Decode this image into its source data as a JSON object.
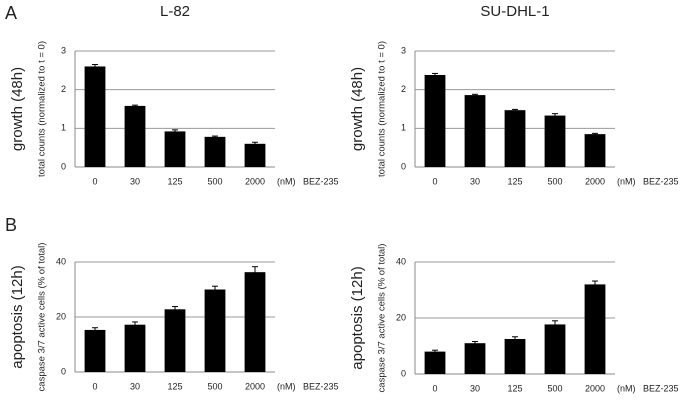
{
  "panel_labels": [
    "A",
    "B"
  ],
  "chart_data": [
    {
      "type": "bar",
      "title": "L-82",
      "y_label_main": "growth (48h)",
      "y_label": "total counts (normalized to t = 0)",
      "categories": [
        "0",
        "30",
        "125",
        "500",
        "2000"
      ],
      "unit_label": "(nM)",
      "x_label": "BEZ-235",
      "values": [
        2.6,
        1.58,
        0.92,
        0.78,
        0.6
      ],
      "errors": [
        0.05,
        0.02,
        0.04,
        0.02,
        0.04
      ],
      "color": "#000000",
      "ylim": [
        0,
        3
      ],
      "yticks": [
        0,
        1,
        2,
        3
      ],
      "grid": true
    },
    {
      "type": "bar",
      "title": "SU-DHL-1",
      "y_label_main": "growth (48h)",
      "y_label": "total counts (normalized to t = 0)",
      "categories": [
        "0",
        "30",
        "125",
        "500",
        "2000"
      ],
      "unit_label": "(nM)",
      "x_label": "BEZ-235",
      "values": [
        2.38,
        1.86,
        1.47,
        1.33,
        0.85
      ],
      "errors": [
        0.04,
        0.02,
        0.02,
        0.05,
        0.02
      ],
      "color": "#000000",
      "ylim": [
        0,
        3
      ],
      "yticks": [
        0,
        1,
        2,
        3
      ],
      "grid": true
    },
    {
      "type": "bar",
      "y_label_main": "apoptosis (12h)",
      "y_label": "caspase 3/7 active cells  (% of total)",
      "categories": [
        "0",
        "30",
        "125",
        "500",
        "2000"
      ],
      "unit_label": "(nM)",
      "x_label": "BEZ-235",
      "values": [
        15.3,
        17.2,
        22.8,
        30,
        36.3
      ],
      "errors": [
        0.8,
        1,
        1,
        1.2,
        2
      ],
      "color": "#000000",
      "ylim": [
        0,
        40
      ],
      "yticks": [
        0,
        20,
        40
      ],
      "grid": true
    },
    {
      "type": "bar",
      "y_label_main": "apoptosis (12h)",
      "y_label": "caspase 3/7 active cells  (% of total)",
      "categories": [
        "0",
        "30",
        "125",
        "500",
        "2000"
      ],
      "unit_label": "(nM)",
      "x_label": "BEZ-235",
      "values": [
        8,
        11,
        12.5,
        17.7,
        32
      ],
      "errors": [
        0.5,
        0.6,
        0.8,
        1.3,
        1.2
      ],
      "color": "#000000",
      "ylim": [
        0,
        40
      ],
      "yticks": [
        0,
        20,
        40
      ],
      "grid": true
    }
  ]
}
